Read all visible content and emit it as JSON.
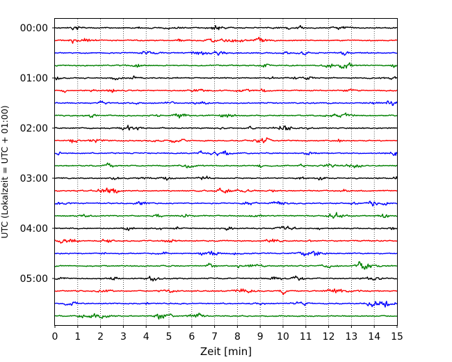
{
  "chart_data": {
    "type": "line",
    "title": "",
    "xlabel": "Zeit  [min]",
    "ylabel": "UTC (Lokalzeit = UTC + 01:00)",
    "xlim": [
      0,
      15
    ],
    "x_ticks": [
      0,
      1,
      2,
      3,
      4,
      5,
      6,
      7,
      8,
      9,
      10,
      11,
      12,
      13,
      14,
      15
    ],
    "x_tick_labels": [
      "0",
      "1",
      "2",
      "3",
      "4",
      "5",
      "6",
      "7",
      "8",
      "9",
      "10",
      "11",
      "12",
      "13",
      "14",
      "15"
    ],
    "y_tick_labels": [
      "00:00",
      "01:00",
      "02:00",
      "03:00",
      "04:00",
      "05:00"
    ],
    "grid": "vertical dotted",
    "trace_colors": [
      "#000000",
      "#ff0000",
      "#0000ff",
      "#008000"
    ],
    "traces": [
      {
        "start": "00:00",
        "color": "#000000"
      },
      {
        "start": "00:15",
        "color": "#ff0000"
      },
      {
        "start": "00:30",
        "color": "#0000ff"
      },
      {
        "start": "00:45",
        "color": "#008000"
      },
      {
        "start": "01:00",
        "color": "#000000"
      },
      {
        "start": "01:15",
        "color": "#ff0000"
      },
      {
        "start": "01:30",
        "color": "#0000ff"
      },
      {
        "start": "01:45",
        "color": "#008000"
      },
      {
        "start": "02:00",
        "color": "#000000"
      },
      {
        "start": "02:15",
        "color": "#ff0000"
      },
      {
        "start": "02:30",
        "color": "#0000ff"
      },
      {
        "start": "02:45",
        "color": "#008000"
      },
      {
        "start": "03:00",
        "color": "#000000"
      },
      {
        "start": "03:15",
        "color": "#ff0000"
      },
      {
        "start": "03:30",
        "color": "#0000ff"
      },
      {
        "start": "03:45",
        "color": "#008000"
      },
      {
        "start": "04:00",
        "color": "#000000"
      },
      {
        "start": "04:15",
        "color": "#ff0000"
      },
      {
        "start": "04:30",
        "color": "#0000ff"
      },
      {
        "start": "04:45",
        "color": "#008000"
      },
      {
        "start": "05:00",
        "color": "#000000"
      },
      {
        "start": "05:15",
        "color": "#ff0000"
      },
      {
        "start": "05:30",
        "color": "#0000ff"
      },
      {
        "start": "05:45",
        "color": "#008000"
      }
    ]
  }
}
